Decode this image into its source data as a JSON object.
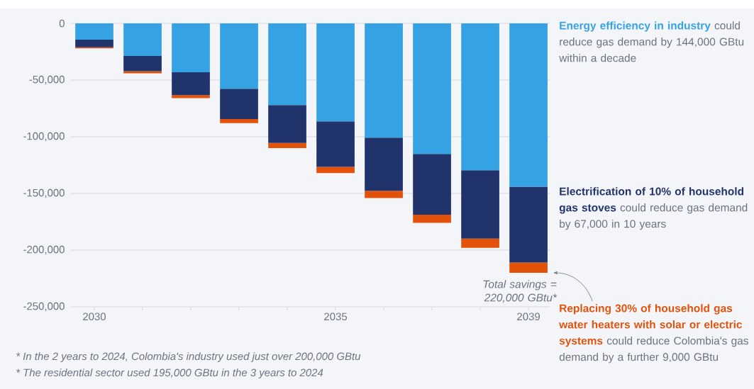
{
  "chart_data": {
    "type": "bar",
    "stacked": true,
    "grid": "y",
    "categories": [
      "2030",
      null,
      null,
      null,
      null,
      "2035",
      null,
      null,
      null,
      "2039"
    ],
    "ylim": [
      -250000,
      0
    ],
    "yticks": [
      0,
      {
        "value": -50000,
        "label": "-50,000"
      },
      {
        "value": -100000,
        "label": "-100,000"
      },
      {
        "value": -150000,
        "label": "-150,000"
      },
      {
        "value": -200000,
        "label": "-200,000"
      },
      {
        "value": -250000,
        "label": "-250,000"
      }
    ],
    "series": [
      {
        "name": "Energy efficiency in industry",
        "color": "#35a3e3",
        "values": [
          -14400,
          -28800,
          -43200,
          -57600,
          -72000,
          -86400,
          -100800,
          -115200,
          -129600,
          -144000
        ]
      },
      {
        "name": "Electrification of 10% of household gas stoves",
        "color": "#21336b",
        "values": [
          -6700,
          -13400,
          -20100,
          -26800,
          -33500,
          -40200,
          -46900,
          -53600,
          -60300,
          -67000
        ]
      },
      {
        "name": "Replacing 30% of household gas water heaters with solar or electric systems",
        "color": "#e2520a",
        "values": [
          -900,
          -1800,
          -2700,
          -3600,
          -4500,
          -5400,
          -6300,
          -7200,
          -8100,
          -9000
        ]
      }
    ],
    "annotations": [
      "could reduce gas demand by 144,000 GBtu within a decade",
      "could reduce gas demand by 67,000 in 10 years",
      "could reduce Colombia's gas demand by a further 9,000 GBtu",
      {
        "text": "Total savings = 220,000 GBtu*",
        "x": "2039",
        "y": -220000
      },
      "* In the 2 years to 2024, Colombia's industry used just over 200,000 GBtu",
      "* The residential sector used 195,000 GBtu in the 3 years to 2024"
    ]
  }
}
